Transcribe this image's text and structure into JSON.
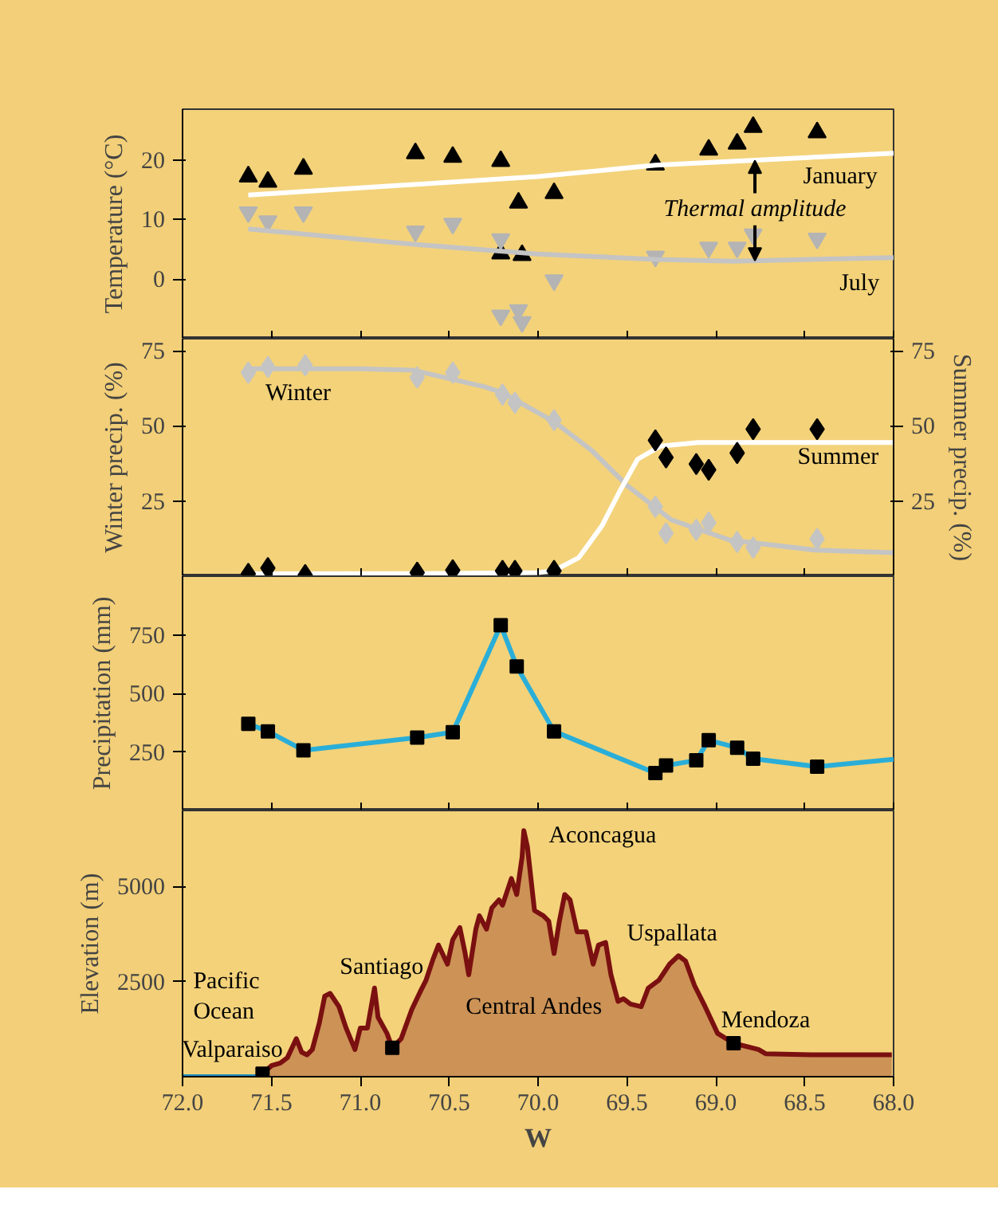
{
  "chart_data": [
    {
      "type": "scatter",
      "ylabel": "Temperature (°C)",
      "xlim": [
        72,
        68
      ],
      "xticks": [
        {
          "value": 72,
          "label": null
        },
        {
          "value": 71.5,
          "label": null
        },
        {
          "value": 71,
          "label": null
        },
        {
          "value": 70.5,
          "label": null
        },
        {
          "value": 70,
          "label": null
        },
        {
          "value": 69.5,
          "label": null
        },
        {
          "value": 69,
          "label": null
        },
        {
          "value": 68.5,
          "label": null
        },
        {
          "value": 68,
          "label": null
        }
      ],
      "ylim": [
        -10,
        28.5
      ],
      "yticks": [
        0,
        10,
        20
      ],
      "tick_labels": "y",
      "series": [
        {
          "marker": "triangle",
          "color": "#000000",
          "x": [
            71.63,
            71.52,
            71.32,
            70.69,
            70.48,
            70.21,
            70.11,
            70.21,
            70.09,
            69.91,
            69.34,
            69.04,
            68.88,
            68.79,
            68.43
          ],
          "values": [
            17.2,
            16.3,
            18.5,
            21.1,
            20.5,
            19.8,
            12.8,
            4.3,
            4.0,
            14.4,
            19.2,
            21.7,
            22.7,
            25.5,
            24.6
          ]
        },
        {
          "color": "#b4b4b4",
          "x": [
            71.63,
            71.52,
            71.32,
            70.69,
            70.48,
            70.21,
            70.21,
            70.11,
            70.09,
            69.91,
            69.34,
            69.04,
            68.88,
            68.79,
            68.43
          ],
          "values": [
            11.2,
            9.7,
            11.2,
            8.0,
            9.3,
            6.7,
            -6.1,
            -5.2,
            -7.2,
            -0.2,
            3.8,
            5.3,
            5.3,
            7.5,
            6.8
          ]
        },
        {
          "type": "line",
          "marker": "none",
          "color": "#ffffff",
          "x": [
            71.63,
            70.0,
            69.34,
            68.0
          ],
          "values": [
            14.1,
            17.2,
            19.1,
            21.1
          ]
        },
        {
          "type": "line",
          "marker": "none",
          "color": "#c4c4c4",
          "x": [
            71.63,
            70.69,
            70.0,
            69.34,
            68.9,
            68.0
          ],
          "values": [
            8.4,
            5.8,
            4.2,
            3.3,
            3.0,
            3.6
          ]
        }
      ],
      "annotations": [
        "January",
        {
          "text": "Thermal amplitude",
          "x": 68.78,
          "y": 19.9
        },
        "July"
      ]
    },
    {
      "type": "scatter",
      "ylabel": "Winter precip. (%)",
      "y2label": "Summer precip. (%)",
      "xlim": [
        72,
        68
      ],
      "xticks": [
        {
          "value": 72,
          "label": null
        },
        {
          "value": 71.5,
          "label": null
        },
        {
          "value": 71,
          "label": null
        },
        {
          "value": 70.5,
          "label": null
        },
        {
          "value": 70,
          "label": null
        },
        {
          "value": 69.5,
          "label": null
        },
        {
          "value": 69,
          "label": null
        },
        {
          "value": 68.5,
          "label": null
        },
        {
          "value": 68,
          "label": null
        }
      ],
      "ylim": [
        0,
        79
      ],
      "yticks": [
        25,
        50,
        75
      ],
      "y2lim": [
        0,
        79
      ],
      "y2ticks": [
        25,
        50,
        75
      ],
      "tick_labels": "y",
      "series": [
        {
          "type": "line",
          "marker": "none",
          "color": "#c4c4c4",
          "x": [
            71.63,
            71.0,
            70.7,
            70.3,
            70.2,
            69.91,
            69.7,
            69.5,
            69.25,
            68.92,
            68.44,
            68.0
          ],
          "values": [
            69.0,
            69.0,
            68.5,
            63.0,
            61.0,
            51.4,
            41.9,
            30.2,
            18.7,
            12.0,
            8.7,
            7.8
          ]
        },
        {
          "type": "line",
          "marker": "none",
          "color": "#ffffff",
          "x": [
            71.63,
            70.5,
            70.0,
            69.91,
            69.77,
            69.64,
            69.54,
            69.44,
            69.31,
            69.1,
            68.0
          ],
          "values": [
            0.8,
            0.9,
            1.2,
            1.8,
            6.2,
            16.8,
            28.3,
            38.9,
            43.3,
            44.5,
            44.5
          ]
        },
        {
          "marker": "diamond",
          "color": "#c4c4c4",
          "x": [
            71.63,
            71.52,
            71.31,
            70.68,
            70.48,
            70.2,
            70.13,
            69.91,
            69.34,
            69.28,
            69.11,
            69.04,
            68.88,
            68.79,
            68.43
          ],
          "values": [
            67.7,
            69.6,
            70.2,
            66.1,
            67.7,
            60.4,
            57.7,
            51.9,
            23.1,
            14.3,
            15.4,
            17.8,
            11.4,
            9.5,
            12.4
          ]
        },
        {
          "marker": "diamond",
          "color": "#000000",
          "x": [
            71.63,
            71.52,
            71.31,
            70.68,
            70.48,
            70.2,
            70.13,
            69.91,
            69.34,
            69.28,
            69.11,
            69.04,
            68.88,
            68.79,
            68.43
          ],
          "values": [
            0.8,
            2.7,
            0.4,
            1.2,
            2.0,
            1.8,
            1.8,
            1.8,
            45.2,
            39.5,
            37.3,
            35.4,
            41.0,
            48.9,
            48.9
          ]
        }
      ],
      "annotations": [
        "Winter",
        "Summer"
      ]
    },
    {
      "type": "line",
      "ylabel": "Precipitation (mm)",
      "xlim": [
        72,
        68
      ],
      "xticks": [
        {
          "value": 72,
          "label": null
        },
        {
          "value": 71.5,
          "label": null
        },
        {
          "value": 71,
          "label": null
        },
        {
          "value": 70.5,
          "label": null
        },
        {
          "value": 70,
          "label": null
        },
        {
          "value": 69.5,
          "label": null
        },
        {
          "value": 69,
          "label": null
        },
        {
          "value": 68.5,
          "label": null
        },
        {
          "value": 68,
          "label": null
        }
      ],
      "ylim": [
        0,
        1000
      ],
      "yticks": [
        250,
        500,
        750
      ],
      "tick_labels": "y",
      "series": [
        {
          "marker": "none",
          "color": "#2aaed8",
          "x": [
            71.63,
            71.52,
            71.32,
            70.68,
            70.48,
            70.21,
            70.12,
            69.91,
            69.34,
            69.28,
            69.11,
            69.04,
            68.88,
            68.79,
            68.43,
            68.0
          ],
          "values": [
            370,
            338,
            257,
            311,
            334,
            791,
            615,
            338,
            160,
            192,
            214,
            300,
            268,
            221,
            187,
            219
          ]
        },
        {
          "type": "scatter",
          "marker": "square",
          "color": "#000000",
          "x": [
            71.63,
            71.52,
            71.32,
            70.68,
            70.48,
            70.21,
            70.12,
            69.91,
            69.34,
            69.28,
            69.11,
            69.04,
            68.88,
            68.79,
            68.43
          ],
          "values": [
            370,
            338,
            257,
            311,
            334,
            791,
            615,
            338,
            160,
            192,
            214,
            300,
            268,
            221,
            187
          ]
        }
      ]
    },
    {
      "type": "area",
      "ylabel": "Elevation (m)",
      "xlabel": "W",
      "xlim": [
        72,
        68
      ],
      "xticks": [
        {
          "value": 72,
          "label": "72.0"
        },
        {
          "value": 71.5,
          "label": "71.5"
        },
        {
          "value": 71,
          "label": "71.0"
        },
        {
          "value": 70.5,
          "label": "70.5"
        },
        {
          "value": 70,
          "label": "70.0"
        },
        {
          "value": 69.5,
          "label": "69.5"
        },
        {
          "value": 69,
          "label": "69.0"
        },
        {
          "value": 68.5,
          "label": "68.5"
        },
        {
          "value": 68,
          "label": "68.0"
        }
      ],
      "ylim": [
        0,
        7000
      ],
      "yticks": [
        2500,
        5000
      ],
      "series": [
        {
          "type": "line",
          "marker": "none",
          "color": "#1f8fc0",
          "x": [
            72.0,
            71.55
          ],
          "values": [
            0,
            0
          ]
        },
        {
          "color": "#7b1010",
          "x": [
            71.55,
            71.5,
            71.45,
            71.41,
            71.36,
            71.33,
            71.3,
            71.27,
            71.23,
            71.2,
            71.17,
            71.12,
            71.08,
            71.03,
            71.0,
            70.96,
            70.92,
            70.9,
            70.85,
            70.82,
            70.77,
            70.71,
            70.66,
            70.63,
            70.59,
            70.56,
            70.51,
            70.48,
            70.44,
            70.41,
            70.39,
            70.35,
            70.33,
            70.29,
            70.26,
            70.22,
            70.2,
            70.15,
            70.12,
            70.09,
            70.08,
            70.06,
            70.02,
            69.97,
            69.94,
            69.91,
            69.88,
            69.85,
            69.82,
            69.78,
            69.73,
            69.69,
            69.66,
            69.62,
            69.59,
            69.55,
            69.52,
            69.48,
            69.42,
            69.38,
            69.32,
            69.26,
            69.21,
            69.17,
            69.12,
            69.06,
            68.99,
            68.9,
            68.76,
            68.72,
            68.45,
            68.01
          ],
          "values": [
            80,
            290,
            360,
            500,
            1000,
            645,
            575,
            715,
            1420,
            2120,
            2190,
            1840,
            1280,
            715,
            1280,
            1280,
            2330,
            1560,
            1140,
            760,
            1000,
            1770,
            2260,
            2540,
            3100,
            3460,
            2960,
            3600,
            3920,
            3240,
            2680,
            3880,
            4230,
            3880,
            4440,
            4650,
            4510,
            5210,
            4790,
            5770,
            6470,
            6050,
            4370,
            4230,
            4090,
            3240,
            4090,
            4790,
            4650,
            3810,
            3810,
            2960,
            3460,
            3530,
            2680,
            1980,
            2050,
            1910,
            1840,
            2330,
            2540,
            2960,
            3180,
            3040,
            2400,
            1840,
            1140,
            880,
            715,
            605,
            575,
            575
          ]
        },
        {
          "type": "scatter",
          "marker": "square",
          "color": "#000000",
          "x": [
            71.55,
            70.82,
            68.9
          ],
          "values": [
            80,
            760,
            880
          ]
        }
      ],
      "annotations": [
        "Aconcagua",
        "Uspallata",
        "Pacific\nOcean",
        "Santiago",
        "Valparaiso",
        "Central Andes",
        "Mendoza"
      ]
    }
  ]
}
